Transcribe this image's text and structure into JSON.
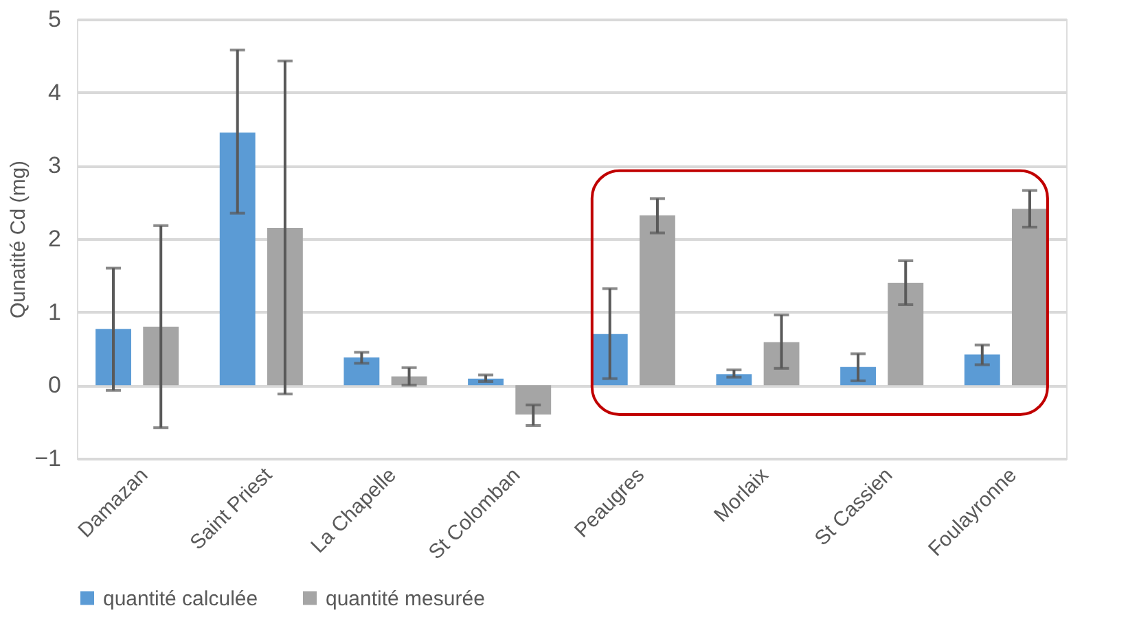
{
  "chart_data": {
    "type": "bar",
    "ylabel": "Qunatité Cd (mg)",
    "categories": [
      "Damazan",
      "Saint Priest",
      "La Chapelle",
      "St Colomban",
      "Peaugres",
      "Morlaix",
      "St Cassien",
      "Foulayronne"
    ],
    "series": [
      {
        "name": "quantité calculée",
        "color": "#5b9bd5",
        "values": [
          0.77,
          3.45,
          0.38,
          0.09,
          0.7,
          0.15,
          0.25,
          0.42
        ],
        "errors": [
          [
            -0.07,
            1.6
          ],
          [
            2.35,
            4.58
          ],
          [
            0.3,
            0.45
          ],
          [
            0.05,
            0.14
          ],
          [
            0.09,
            1.32
          ],
          [
            0.11,
            0.21
          ],
          [
            0.06,
            0.43
          ],
          [
            0.28,
            0.55
          ]
        ]
      },
      {
        "name": "quantité mesurée",
        "color": "#a5a5a5",
        "values": [
          0.8,
          2.15,
          0.12,
          -0.4,
          2.32,
          0.59,
          1.4,
          2.41
        ],
        "errors": [
          [
            -0.58,
            2.18
          ],
          [
            -0.12,
            4.43
          ],
          [
            0.0,
            0.24
          ],
          [
            -0.55,
            -0.27
          ],
          [
            2.08,
            2.55
          ],
          [
            0.23,
            0.96
          ],
          [
            1.1,
            1.7
          ],
          [
            2.16,
            2.66
          ]
        ]
      }
    ],
    "ylim": [
      -1,
      5
    ],
    "yticks": [
      -1,
      0,
      1,
      2,
      3,
      4,
      5
    ],
    "grid": "y",
    "legend": "bottom"
  }
}
